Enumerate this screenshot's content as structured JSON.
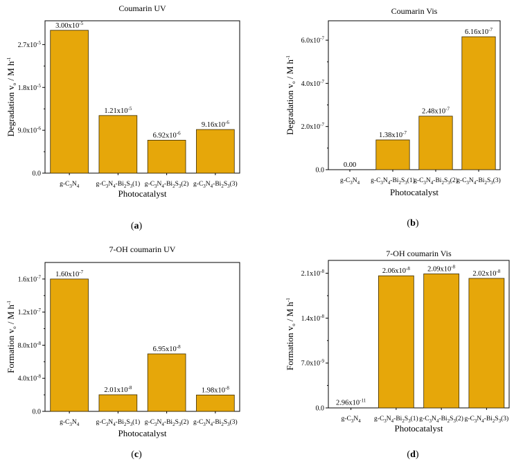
{
  "chart_data": [
    {
      "panel_label": "(a)",
      "type": "bar",
      "title": "Coumarin UV",
      "xlabel": "Photocatalyst",
      "ylabel": "Degradation v_o / M h^-1",
      "categories": [
        "g-C3N4",
        "g-C3N4-Bi2S3(1)",
        "g-C3N4-Bi2S3(2)",
        "g-C3N4-Bi2S3(3)"
      ],
      "values": [
        3e-05,
        1.21e-05,
        6.92e-06,
        9.16e-06
      ],
      "data_labels": [
        {
          "mant": "3.00",
          "exp": "-5"
        },
        {
          "mant": "1.21",
          "exp": "-5"
        },
        {
          "mant": "6.92",
          "exp": "-6"
        },
        {
          "mant": "9.16",
          "exp": "-6"
        }
      ],
      "yticks": [
        0,
        9e-06,
        1.8e-05,
        2.7e-05
      ],
      "ytick_labels": [
        {
          "mant": "0.0",
          "exp": ""
        },
        {
          "mant": "9.0",
          "exp": "-6"
        },
        {
          "mant": "1.8",
          "exp": "-5"
        },
        {
          "mant": "2.7",
          "exp": "-5"
        }
      ],
      "ylim": [
        0,
        3.2e-05
      ],
      "bar_color": "#E6A70A"
    },
    {
      "panel_label": "(b)",
      "type": "bar",
      "title": "Coumarin Vis",
      "xlabel": "Photocatalyst",
      "ylabel": "Degradation v_o / M h^-1",
      "categories": [
        "g-C3N4",
        "g-C3N4-Bi2S3(1)",
        "g-C3N4-Bi2S3(2)",
        "g-C3N4-Bi2S3(3)"
      ],
      "values": [
        0,
        1.38e-07,
        2.48e-07,
        6.16e-07
      ],
      "data_labels": [
        {
          "mant": "0.00",
          "exp": ""
        },
        {
          "mant": "1.38",
          "exp": "-7"
        },
        {
          "mant": "2.48",
          "exp": "-7"
        },
        {
          "mant": "6.16",
          "exp": "-7"
        }
      ],
      "yticks": [
        0,
        2e-07,
        4e-07,
        6e-07
      ],
      "ytick_labels": [
        {
          "mant": "0.0",
          "exp": ""
        },
        {
          "mant": "2.0",
          "exp": "-7"
        },
        {
          "mant": "4.0",
          "exp": "-7"
        },
        {
          "mant": "6.0",
          "exp": "-7"
        }
      ],
      "ylim": [
        0,
        6.9e-07
      ],
      "bar_color": "#E6A70A"
    },
    {
      "panel_label": "(c)",
      "type": "bar",
      "title": "7-OH coumarin UV",
      "xlabel": "Photocatalyst",
      "ylabel": "Formation v_o / M h^-1",
      "categories": [
        "g-C3N4",
        "g-C3N4-Bi2S3(1)",
        "g-C3N4-Bi2S3(2)",
        "g-C3N4-Bi2S3(3)"
      ],
      "values": [
        1.6e-07,
        2.01e-08,
        6.95e-08,
        1.98e-08
      ],
      "data_labels": [
        {
          "mant": "1.60",
          "exp": "-7"
        },
        {
          "mant": "2.01",
          "exp": "-8"
        },
        {
          "mant": "6.95",
          "exp": "-8"
        },
        {
          "mant": "1.98",
          "exp": "-8"
        }
      ],
      "yticks": [
        0,
        4e-08,
        8e-08,
        1.2e-07,
        1.6e-07
      ],
      "ytick_labels": [
        {
          "mant": "0.0",
          "exp": ""
        },
        {
          "mant": "4.0",
          "exp": "-8"
        },
        {
          "mant": "8.0",
          "exp": "-8"
        },
        {
          "mant": "1.2",
          "exp": "-7"
        },
        {
          "mant": "1.6",
          "exp": "-7"
        }
      ],
      "ylim": [
        0,
        1.8e-07
      ],
      "bar_color": "#E6A70A"
    },
    {
      "panel_label": "(d)",
      "type": "bar",
      "title": "7-OH coumarin Vis",
      "xlabel": "Photocatalyst",
      "ylabel": "Formation v_o / M h^-1",
      "categories": [
        "g-C3N4",
        "g-C3N4-Bi2S3(1)",
        "g-C3N4-Bi2S3(2)",
        "g-C3N4-Bi2S3(3)"
      ],
      "values": [
        2.96e-11,
        2.06e-08,
        2.09e-08,
        2.02e-08
      ],
      "data_labels": [
        {
          "mant": "2.96",
          "exp": "-11"
        },
        {
          "mant": "2.06",
          "exp": "-8"
        },
        {
          "mant": "2.09",
          "exp": "-8"
        },
        {
          "mant": "2.02",
          "exp": "-8"
        }
      ],
      "yticks": [
        0,
        7e-09,
        1.4e-08,
        2.1e-08
      ],
      "ytick_labels": [
        {
          "mant": "0.0",
          "exp": ""
        },
        {
          "mant": "7.0",
          "exp": "-9"
        },
        {
          "mant": "1.4",
          "exp": "-8"
        },
        {
          "mant": "2.1",
          "exp": "-8"
        }
      ],
      "ylim": [
        0,
        2.3e-08
      ],
      "bar_color": "#E6A70A"
    }
  ]
}
